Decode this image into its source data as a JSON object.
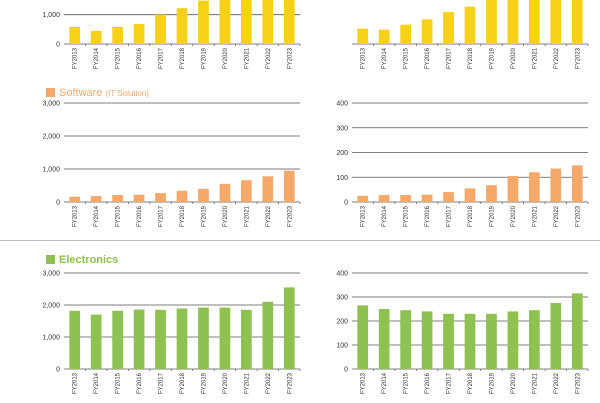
{
  "sections": [
    {
      "title": "",
      "subtitle": "",
      "color": "#f7d117"
    },
    {
      "title": "Software",
      "subtitle": "(IT Solution)",
      "color": "#f4a96b"
    },
    {
      "title": "Electronics",
      "subtitle": "",
      "color": "#8fc150"
    }
  ],
  "chart_data": [
    {
      "type": "bar",
      "color": "#f7d117",
      "categories": [
        "FY2013",
        "FY2014",
        "FY2015",
        "FY2016",
        "FY2017",
        "FY2018",
        "FY2019",
        "FY2020",
        "FY2021",
        "FY2022",
        "FY2023"
      ],
      "values": [
        580,
        450,
        580,
        680,
        1000,
        1220,
        1480,
        1520,
        1520,
        1500,
        1500
      ],
      "ylim": [
        0,
        1500
      ],
      "yticks": [
        "0",
        "1,000"
      ],
      "ytick_values": [
        0,
        1000
      ]
    },
    {
      "type": "bar",
      "color": "#f7d117",
      "categories": [
        "FY2013",
        "FY2014",
        "FY2015",
        "FY2016",
        "FY2017",
        "FY2018",
        "FY2019",
        "FY2020",
        "FY2021",
        "FY2022",
        "FY2023"
      ],
      "values": [
        70,
        65,
        88,
        112,
        145,
        170,
        200,
        200,
        200,
        200,
        200
      ],
      "ylim": [
        0,
        200
      ],
      "yticks": [],
      "ytick_values": []
    },
    {
      "type": "bar",
      "color": "#f4a96b",
      "categories": [
        "FY2013",
        "FY2014",
        "FY2015",
        "FY2016",
        "FY2017",
        "FY2018",
        "FY2019",
        "FY2020",
        "FY2021",
        "FY2022",
        "FY2023"
      ],
      "values": [
        160,
        180,
        210,
        220,
        270,
        340,
        400,
        550,
        660,
        780,
        950
      ],
      "ylim": [
        0,
        3000
      ],
      "yticks": [
        "0",
        "1,000",
        "2,000",
        "3,000"
      ],
      "ytick_values": [
        0,
        1000,
        2000,
        3000
      ]
    },
    {
      "type": "bar",
      "color": "#f4a96b",
      "categories": [
        "FY2013",
        "FY2014",
        "FY2015",
        "FY2016",
        "FY2017",
        "FY2018",
        "FY2019",
        "FY2020",
        "FY2021",
        "FY2022",
        "FY2023"
      ],
      "values": [
        25,
        28,
        28,
        30,
        40,
        55,
        68,
        105,
        120,
        135,
        148
      ],
      "ylim": [
        0,
        400
      ],
      "yticks": [
        "0",
        "100",
        "200",
        "300",
        "400"
      ],
      "ytick_values": [
        0,
        100,
        200,
        300,
        400
      ]
    },
    {
      "type": "bar",
      "color": "#8fc150",
      "categories": [
        "FY2013",
        "FY2014",
        "FY2015",
        "FY2016",
        "FY2017",
        "FY2018",
        "FY2019",
        "FY2020",
        "FY2021",
        "FY2022",
        "FY2023"
      ],
      "values": [
        1820,
        1700,
        1820,
        1860,
        1850,
        1890,
        1920,
        1920,
        1850,
        2100,
        2550
      ],
      "ylim": [
        0,
        3000
      ],
      "yticks": [
        "0",
        "1,000",
        "2,000",
        "3,000"
      ],
      "ytick_values": [
        0,
        1000,
        2000,
        3000
      ]
    },
    {
      "type": "bar",
      "color": "#8fc150",
      "categories": [
        "FY2013",
        "FY2014",
        "FY2015",
        "FY2016",
        "FY2017",
        "FY2018",
        "FY2019",
        "FY2020",
        "FY2021",
        "FY2022",
        "FY2023"
      ],
      "values": [
        265,
        250,
        245,
        240,
        230,
        230,
        230,
        240,
        245,
        275,
        315
      ],
      "ylim": [
        0,
        400
      ],
      "yticks": [
        "0",
        "100",
        "200",
        "300",
        "400"
      ],
      "ytick_values": [
        0,
        100,
        200,
        300,
        400
      ]
    }
  ]
}
